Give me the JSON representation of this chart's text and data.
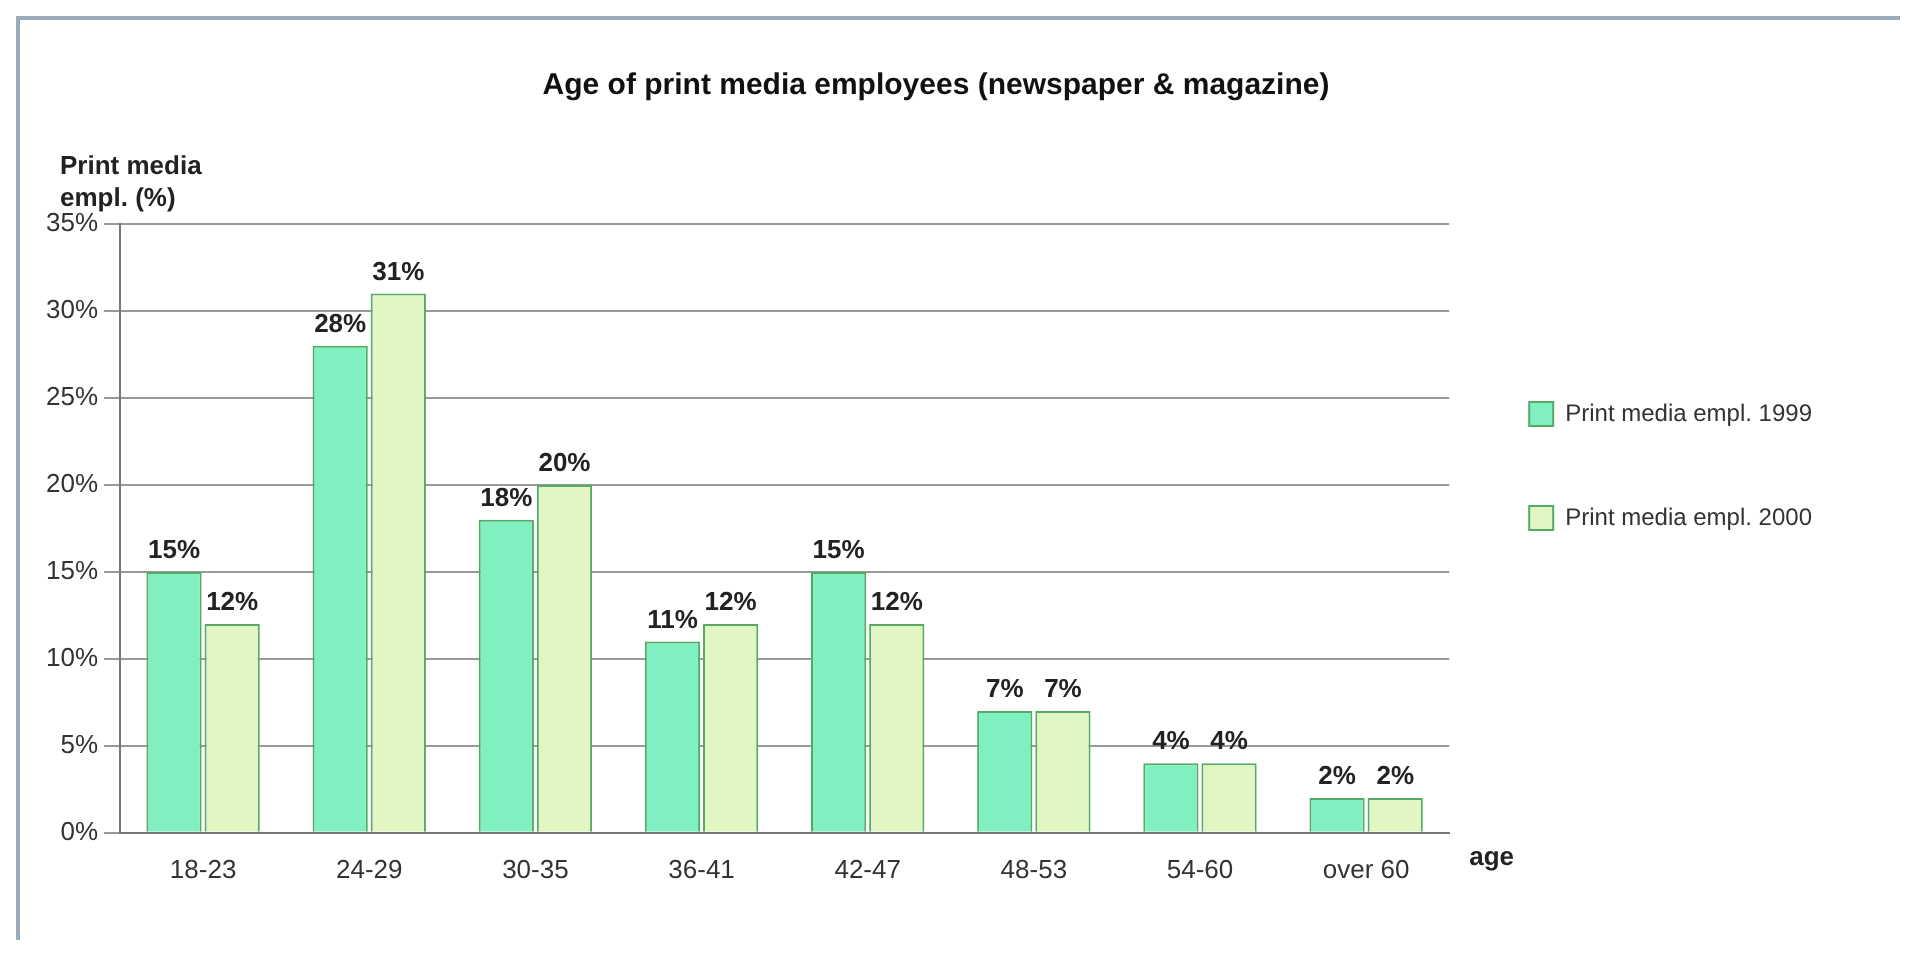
{
  "chart_data": {
    "type": "bar",
    "title": "Age of print media employees (newspaper & magazine)",
    "ylabel": "Print media empl. (%)",
    "xlabel": "age",
    "categories": [
      "18-23",
      "24-29",
      "30-35",
      "36-41",
      "42-47",
      "48-53",
      "54-60",
      "over 60"
    ],
    "series": [
      {
        "name": "Print media empl. 1999",
        "color": "#80f0c0",
        "values": [
          15,
          28,
          18,
          11,
          15,
          7,
          4,
          2
        ],
        "value_labels": [
          "15%",
          "28%",
          "18%",
          "11%",
          "15%",
          "7%",
          "4%",
          "2%"
        ]
      },
      {
        "name": "Print media empl. 2000",
        "color": "#e2f6c4",
        "values": [
          12,
          31,
          20,
          12,
          12,
          7,
          4,
          2
        ],
        "value_labels": [
          "12%",
          "31%",
          "20%",
          "12%",
          "12%",
          "7%",
          "4%",
          "2%"
        ]
      }
    ],
    "ylim": [
      0,
      35
    ],
    "yticks": [
      {
        "value": 0,
        "label": "0%"
      },
      {
        "value": 5,
        "label": "5%"
      },
      {
        "value": 10,
        "label": "10%"
      },
      {
        "value": 15,
        "label": "15%"
      },
      {
        "value": 20,
        "label": "20%"
      },
      {
        "value": 25,
        "label": "25%"
      },
      {
        "value": 30,
        "label": "30%"
      },
      {
        "value": 35,
        "label": "35%"
      }
    ],
    "grid": "y",
    "legend": "right"
  }
}
